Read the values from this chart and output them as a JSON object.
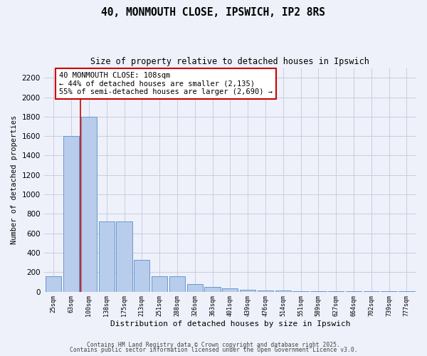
{
  "title": "40, MONMOUTH CLOSE, IPSWICH, IP2 8RS",
  "subtitle": "Size of property relative to detached houses in Ipswich",
  "xlabel": "Distribution of detached houses by size in Ipswich",
  "ylabel": "Number of detached properties",
  "categories": [
    "25sqm",
    "63sqm",
    "100sqm",
    "138sqm",
    "175sqm",
    "213sqm",
    "251sqm",
    "288sqm",
    "326sqm",
    "363sqm",
    "401sqm",
    "439sqm",
    "476sqm",
    "514sqm",
    "551sqm",
    "589sqm",
    "627sqm",
    "664sqm",
    "702sqm",
    "739sqm",
    "777sqm"
  ],
  "values": [
    160,
    1600,
    1800,
    720,
    720,
    325,
    160,
    160,
    80,
    50,
    30,
    20,
    15,
    10,
    5,
    4,
    3,
    2,
    2,
    1,
    1
  ],
  "bar_color": "#b8ccec",
  "bar_edge_color": "#6699cc",
  "background_color": "#eef1fa",
  "grid_color": "#c8cde0",
  "vline_color": "#cc0000",
  "vline_x": 1.5,
  "annotation_text": "40 MONMOUTH CLOSE: 108sqm\n← 44% of detached houses are smaller (2,135)\n55% of semi-detached houses are larger (2,690) →",
  "annotation_box_color": "#ffffff",
  "annotation_box_edge": "#cc0000",
  "ylim": [
    0,
    2300
  ],
  "yticks": [
    0,
    200,
    400,
    600,
    800,
    1000,
    1200,
    1400,
    1600,
    1800,
    2000,
    2200
  ],
  "footnote1": "Contains HM Land Registry data © Crown copyright and database right 2025.",
  "footnote2": "Contains public sector information licensed under the Open Government Licence v3.0."
}
